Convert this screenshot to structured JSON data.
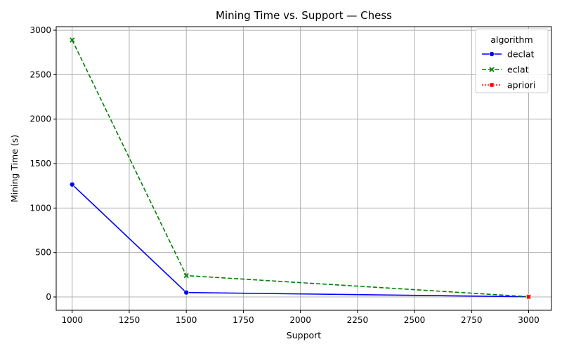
{
  "chart_data": {
    "type": "line",
    "title": "Mining Time vs. Support — Chess",
    "xlabel": "Support",
    "ylabel": "Mining Time (s)",
    "xlim": [
      930,
      3100
    ],
    "ylim": [
      -150,
      3040
    ],
    "x_ticks": [
      1000,
      1250,
      1500,
      1750,
      2000,
      2250,
      2500,
      2750,
      3000
    ],
    "y_ticks": [
      0,
      500,
      1000,
      1500,
      2000,
      2500,
      3000
    ],
    "x_tick_labels": [
      "1000",
      "1250",
      "1500",
      "1750",
      "2000",
      "2250",
      "2500",
      "2750",
      "3000"
    ],
    "y_tick_labels": [
      "0",
      "500",
      "1000",
      "1500",
      "2000",
      "2500",
      "3000"
    ],
    "grid": true,
    "legend": {
      "title": "algorithm",
      "placement": "top-right"
    },
    "series": [
      {
        "name": "declat",
        "color": "#0000ff",
        "dash": "solid",
        "marker": "circle",
        "x": [
          1000,
          1500,
          3000
        ],
        "y": [
          1265,
          50,
          2
        ]
      },
      {
        "name": "eclat",
        "color": "#008000",
        "dash": "dashed",
        "marker": "x",
        "x": [
          1000,
          1500,
          3000
        ],
        "y": [
          2890,
          240,
          3
        ]
      },
      {
        "name": "apriori",
        "color": "#ff0000",
        "dash": "dotted",
        "marker": "square",
        "x": [
          3000
        ],
        "y": [
          1
        ]
      }
    ]
  }
}
